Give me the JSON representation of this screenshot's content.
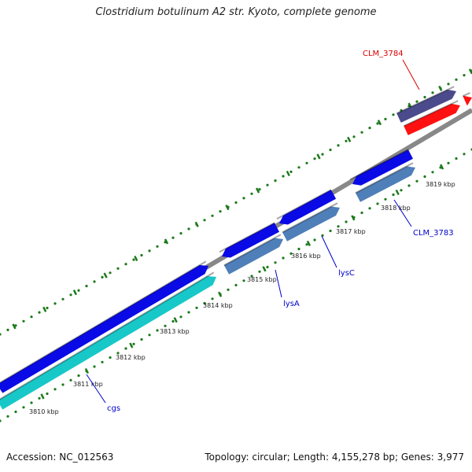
{
  "title": "Clostridium botulinum A2 str. Kyoto, complete genome",
  "footer": {
    "accession": "Accession: NC_012563",
    "summary": "Topology: circular; Length: 4,155,278 bp; Genes: 3,977"
  },
  "colors": {
    "backbone": "#888888",
    "tick": "#1a7a1a",
    "gene_blue": "#0a0ae6",
    "gene_steel": "#4f7fb8",
    "gene_cyan": "#18c8c8",
    "gene_navy": "#4a4a8c",
    "gene_red": "#ff1111",
    "label_blue": "#0000cc",
    "label_red": "#dd0000"
  },
  "kbp_labels": [
    "3810 kbp",
    "3811 kbp",
    "3812 kbp",
    "3813 kbp",
    "3814 kbp",
    "3815 kbp",
    "3816 kbp",
    "3817 kbp",
    "3818 kbp",
    "3819 kbp"
  ],
  "gene_labels": [
    "cgs",
    "lysA",
    "lysC",
    "CLM_3783",
    "CLM_3784"
  ]
}
